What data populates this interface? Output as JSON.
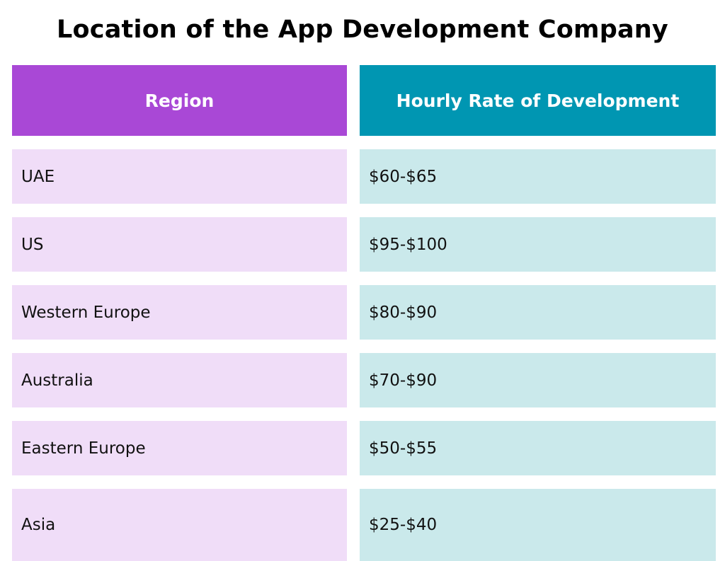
{
  "title": "Location of the App Development Company",
  "colors": {
    "region_header": "#A948D6",
    "rate_header": "#0096B2",
    "region_cell": "#F0DDF8",
    "rate_cell": "#CAE9EB"
  },
  "table": {
    "headers": [
      "Region",
      "Hourly Rate of Development"
    ],
    "rows": [
      {
        "region": "UAE",
        "rate": "$60-$65"
      },
      {
        "region": "US",
        "rate": "$95-$100"
      },
      {
        "region": "Western Europe",
        "rate": "$80-$90"
      },
      {
        "region": "Australia",
        "rate": "$70-$90"
      },
      {
        "region": "Eastern Europe",
        "rate": "$50-$55"
      },
      {
        "region": "Asia",
        "rate": "$25-$40"
      }
    ]
  }
}
